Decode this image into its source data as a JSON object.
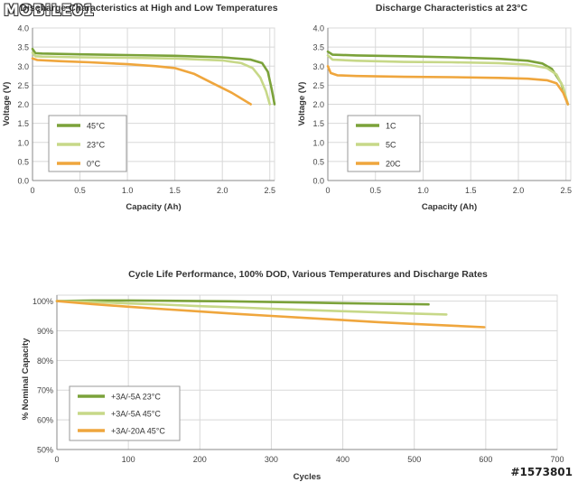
{
  "logo_text": "MOBILE01",
  "watermark": "#1573801",
  "colors": {
    "dark_green": "#7ba23a",
    "light_green": "#c7d888",
    "orange": "#efa63d",
    "grid": "#d8d8d8",
    "axis": "#888888"
  },
  "chart_data": [
    {
      "type": "line",
      "title": "Discharge Characteristics at High and Low Temperatures",
      "xlabel": "Capacity (Ah)",
      "ylabel": "Voltage (V)",
      "xlim": [
        0,
        2.55
      ],
      "ylim": [
        0,
        4.0
      ],
      "xticks": [
        "0",
        "0.5",
        "1.0",
        "1.5",
        "2.0",
        "2.5"
      ],
      "xtick_values": [
        0,
        0.5,
        1.0,
        1.5,
        2.0,
        2.5
      ],
      "yticks": [
        "0.0",
        "0.5",
        "1.0",
        "1.5",
        "2.0",
        "2.5",
        "3.0",
        "3.5",
        "4.0"
      ],
      "ytick_values": [
        0,
        0.5,
        1.0,
        1.5,
        2.0,
        2.5,
        3.0,
        3.5,
        4.0
      ],
      "grid": true,
      "legend_position": "bottom-left",
      "series": [
        {
          "name": "45°C",
          "color": "#7ba23a",
          "x": [
            0,
            0.03,
            0.1,
            0.5,
            1.0,
            1.5,
            2.0,
            2.3,
            2.42,
            2.48,
            2.52,
            2.55
          ],
          "y": [
            3.45,
            3.34,
            3.33,
            3.31,
            3.29,
            3.27,
            3.23,
            3.17,
            3.08,
            2.85,
            2.4,
            2.0
          ]
        },
        {
          "name": "23°C",
          "color": "#c7d888",
          "x": [
            0,
            0.03,
            0.1,
            0.5,
            1.0,
            1.5,
            2.0,
            2.2,
            2.32,
            2.4,
            2.46,
            2.5
          ],
          "y": [
            3.35,
            3.26,
            3.25,
            3.23,
            3.22,
            3.2,
            3.15,
            3.08,
            2.95,
            2.7,
            2.35,
            2.0
          ]
        },
        {
          "name": "0°C",
          "color": "#efa63d",
          "x": [
            0,
            0.05,
            0.3,
            0.6,
            1.0,
            1.3,
            1.5,
            1.7,
            1.9,
            2.1,
            2.3
          ],
          "y": [
            3.2,
            3.16,
            3.13,
            3.1,
            3.05,
            3.0,
            2.95,
            2.8,
            2.55,
            2.3,
            2.0
          ]
        }
      ]
    },
    {
      "type": "line",
      "title": "Discharge Characteristics at 23°C",
      "xlabel": "Capacity (Ah)",
      "ylabel": "Voltage (V)",
      "xlim": [
        0,
        2.55
      ],
      "ylim": [
        0,
        4.0
      ],
      "xticks": [
        "0",
        "0.5",
        "1.0",
        "1.5",
        "2.0",
        "2.5"
      ],
      "xtick_values": [
        0,
        0.5,
        1.0,
        1.5,
        2.0,
        2.5
      ],
      "yticks": [
        "0.0",
        "0.5",
        "1.0",
        "1.5",
        "2.0",
        "2.5",
        "3.0",
        "3.5",
        "4.0"
      ],
      "ytick_values": [
        0,
        0.5,
        1.0,
        1.5,
        2.0,
        2.5,
        3.0,
        3.5,
        4.0
      ],
      "grid": true,
      "legend_position": "bottom-left",
      "series": [
        {
          "name": "1C",
          "color": "#7ba23a",
          "x": [
            0,
            0.05,
            0.3,
            0.8,
            1.3,
            1.8,
            2.1,
            2.25,
            2.35,
            2.45,
            2.52
          ],
          "y": [
            3.38,
            3.3,
            3.28,
            3.26,
            3.23,
            3.19,
            3.14,
            3.07,
            2.93,
            2.55,
            2.0
          ]
        },
        {
          "name": "5C",
          "color": "#c7d888",
          "x": [
            0,
            0.05,
            0.3,
            0.8,
            1.3,
            1.8,
            2.1,
            2.3,
            2.4,
            2.47,
            2.52
          ],
          "y": [
            3.28,
            3.17,
            3.14,
            3.11,
            3.1,
            3.08,
            3.04,
            2.95,
            2.78,
            2.45,
            2.0
          ]
        },
        {
          "name": "20C",
          "color": "#efa63d",
          "x": [
            0,
            0.03,
            0.1,
            0.3,
            0.8,
            1.3,
            1.8,
            2.1,
            2.3,
            2.4,
            2.47,
            2.52
          ],
          "y": [
            3.0,
            2.82,
            2.76,
            2.74,
            2.72,
            2.71,
            2.69,
            2.67,
            2.63,
            2.55,
            2.3,
            2.0
          ]
        }
      ]
    },
    {
      "type": "line",
      "title": "Cycle Life Performance, 100% DOD, Various Temperatures and Discharge Rates",
      "xlabel": "Cycles",
      "ylabel": "% Nominal Capacity",
      "xlim": [
        0,
        700
      ],
      "ylim": [
        50,
        102
      ],
      "xticks": [
        "0",
        "100",
        "200",
        "300",
        "400",
        "500",
        "600",
        "700"
      ],
      "xtick_values": [
        0,
        100,
        200,
        300,
        400,
        500,
        600,
        700
      ],
      "yticks": [
        "50%",
        "60%",
        "70%",
        "80%",
        "90%",
        "100%"
      ],
      "ytick_values": [
        50,
        60,
        70,
        80,
        90,
        100
      ],
      "grid": true,
      "legend_position": "bottom-left",
      "series": [
        {
          "name": "+3A/-5A 23°C",
          "color": "#7ba23a",
          "x": [
            0,
            50,
            100,
            150,
            200,
            250,
            300,
            350,
            400,
            450,
            520
          ],
          "y": [
            100,
            100.2,
            100.2,
            100.1,
            100,
            99.9,
            99.7,
            99.5,
            99.3,
            99.1,
            98.9
          ]
        },
        {
          "name": "+3A/-5A 45°C",
          "color": "#c7d888",
          "x": [
            0,
            50,
            100,
            150,
            200,
            250,
            300,
            350,
            400,
            450,
            500,
            545
          ],
          "y": [
            100,
            99.7,
            99.2,
            98.8,
            98.3,
            97.9,
            97.4,
            97.0,
            96.6,
            96.2,
            95.8,
            95.5
          ]
        },
        {
          "name": "+3A/-20A 45°C",
          "color": "#efa63d",
          "x": [
            0,
            50,
            100,
            150,
            200,
            250,
            300,
            350,
            400,
            450,
            500,
            598
          ],
          "y": [
            100,
            99.0,
            98.1,
            97.3,
            96.5,
            95.7,
            95.0,
            94.3,
            93.6,
            92.9,
            92.3,
            91.2
          ]
        }
      ]
    }
  ]
}
